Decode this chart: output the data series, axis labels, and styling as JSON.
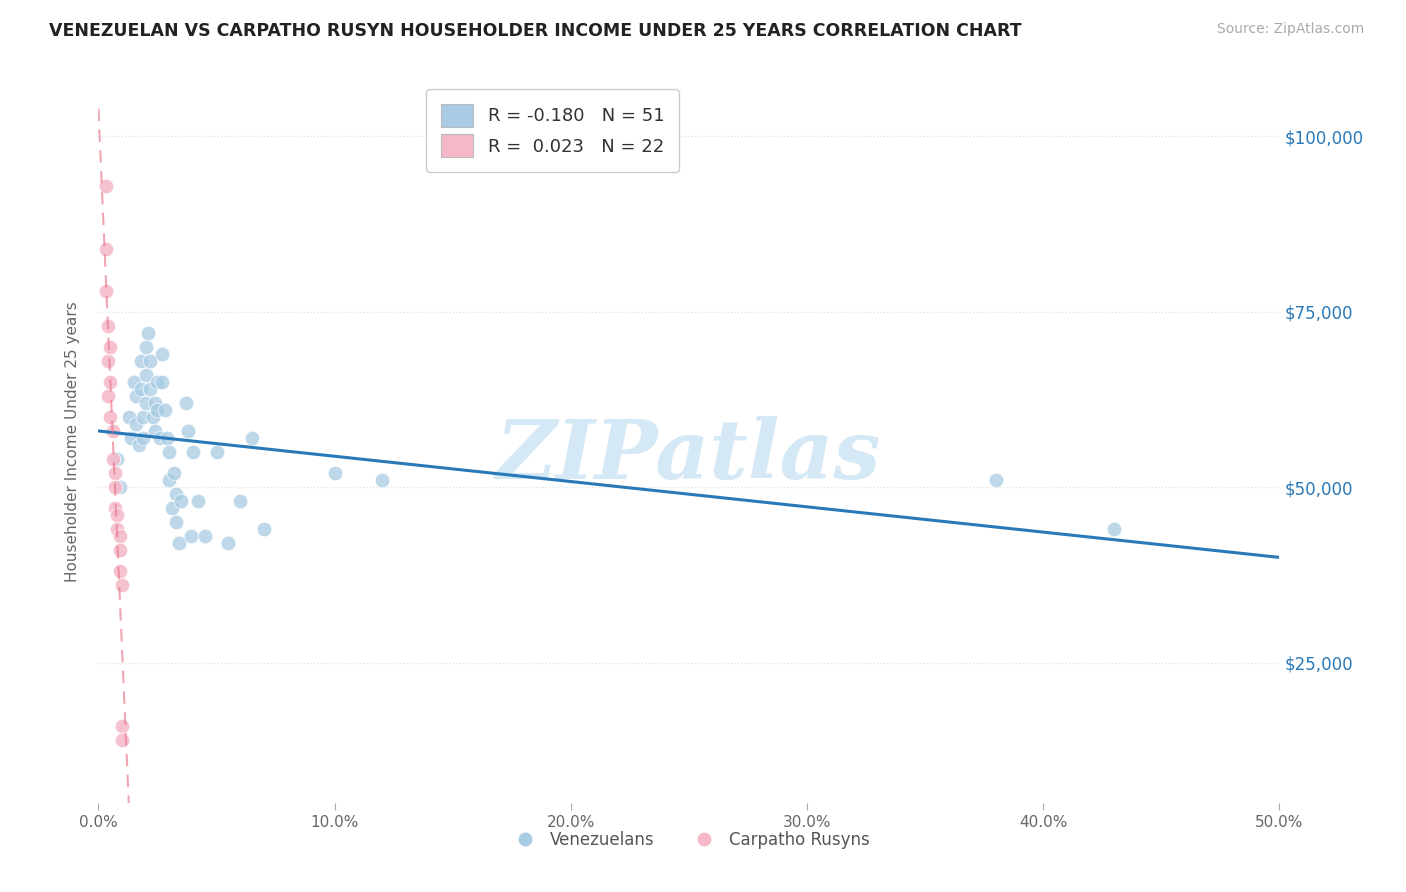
{
  "title": "VENEZUELAN VS CARPATHO RUSYN HOUSEHOLDER INCOME UNDER 25 YEARS CORRELATION CHART",
  "source": "Source: ZipAtlas.com",
  "ylabel": "Householder Income Under 25 years",
  "xmin": 0.0,
  "xmax": 0.5,
  "ymin": 5000,
  "ymax": 108000,
  "yticks": [
    25000,
    50000,
    75000,
    100000
  ],
  "ytick_labels": [
    "$25,000",
    "$50,000",
    "$75,000",
    "$100,000"
  ],
  "xticks": [
    0.0,
    0.1,
    0.2,
    0.3,
    0.4,
    0.5
  ],
  "xtick_labels": [
    "0.0%",
    "10.0%",
    "20.0%",
    "30.0%",
    "40.0%",
    "50.0%"
  ],
  "blue_scatter_color": "#a8cce4",
  "blue_line_color": "#2979b9",
  "pink_scatter_color": "#f5b8c8",
  "pink_line_color": "#e8758a",
  "watermark": "ZIPatlas",
  "watermark_color": "#d5e8f5",
  "background_color": "#ffffff",
  "grid_color": "#e0e0e0",
  "venezuelan_x": [
    0.008,
    0.009,
    0.013,
    0.014,
    0.015,
    0.016,
    0.016,
    0.017,
    0.018,
    0.018,
    0.019,
    0.019,
    0.02,
    0.02,
    0.02,
    0.021,
    0.022,
    0.022,
    0.023,
    0.024,
    0.024,
    0.025,
    0.025,
    0.026,
    0.027,
    0.027,
    0.028,
    0.029,
    0.03,
    0.03,
    0.031,
    0.032,
    0.033,
    0.033,
    0.034,
    0.035,
    0.037,
    0.038,
    0.039,
    0.04,
    0.042,
    0.045,
    0.05,
    0.055,
    0.06,
    0.065,
    0.07,
    0.1,
    0.12,
    0.38,
    0.43
  ],
  "venezuelan_y": [
    54000,
    50000,
    60000,
    57000,
    65000,
    63000,
    59000,
    56000,
    68000,
    64000,
    60000,
    57000,
    70000,
    66000,
    62000,
    72000,
    68000,
    64000,
    60000,
    62000,
    58000,
    65000,
    61000,
    57000,
    69000,
    65000,
    61000,
    57000,
    55000,
    51000,
    47000,
    52000,
    49000,
    45000,
    42000,
    48000,
    62000,
    58000,
    43000,
    55000,
    48000,
    43000,
    55000,
    42000,
    48000,
    57000,
    44000,
    52000,
    51000,
    51000,
    44000
  ],
  "rusyn_x": [
    0.003,
    0.003,
    0.003,
    0.004,
    0.004,
    0.004,
    0.005,
    0.005,
    0.005,
    0.006,
    0.006,
    0.007,
    0.007,
    0.007,
    0.008,
    0.008,
    0.009,
    0.009,
    0.009,
    0.01,
    0.01,
    0.01
  ],
  "rusyn_y": [
    93000,
    84000,
    78000,
    73000,
    68000,
    63000,
    70000,
    65000,
    60000,
    58000,
    54000,
    52000,
    50000,
    47000,
    46000,
    44000,
    43000,
    41000,
    38000,
    36000,
    16000,
    14000
  ],
  "legend_r1": "R = -0.180",
  "legend_n1": "N = 51",
  "legend_r2": "R =  0.023",
  "legend_n2": "N = 22"
}
